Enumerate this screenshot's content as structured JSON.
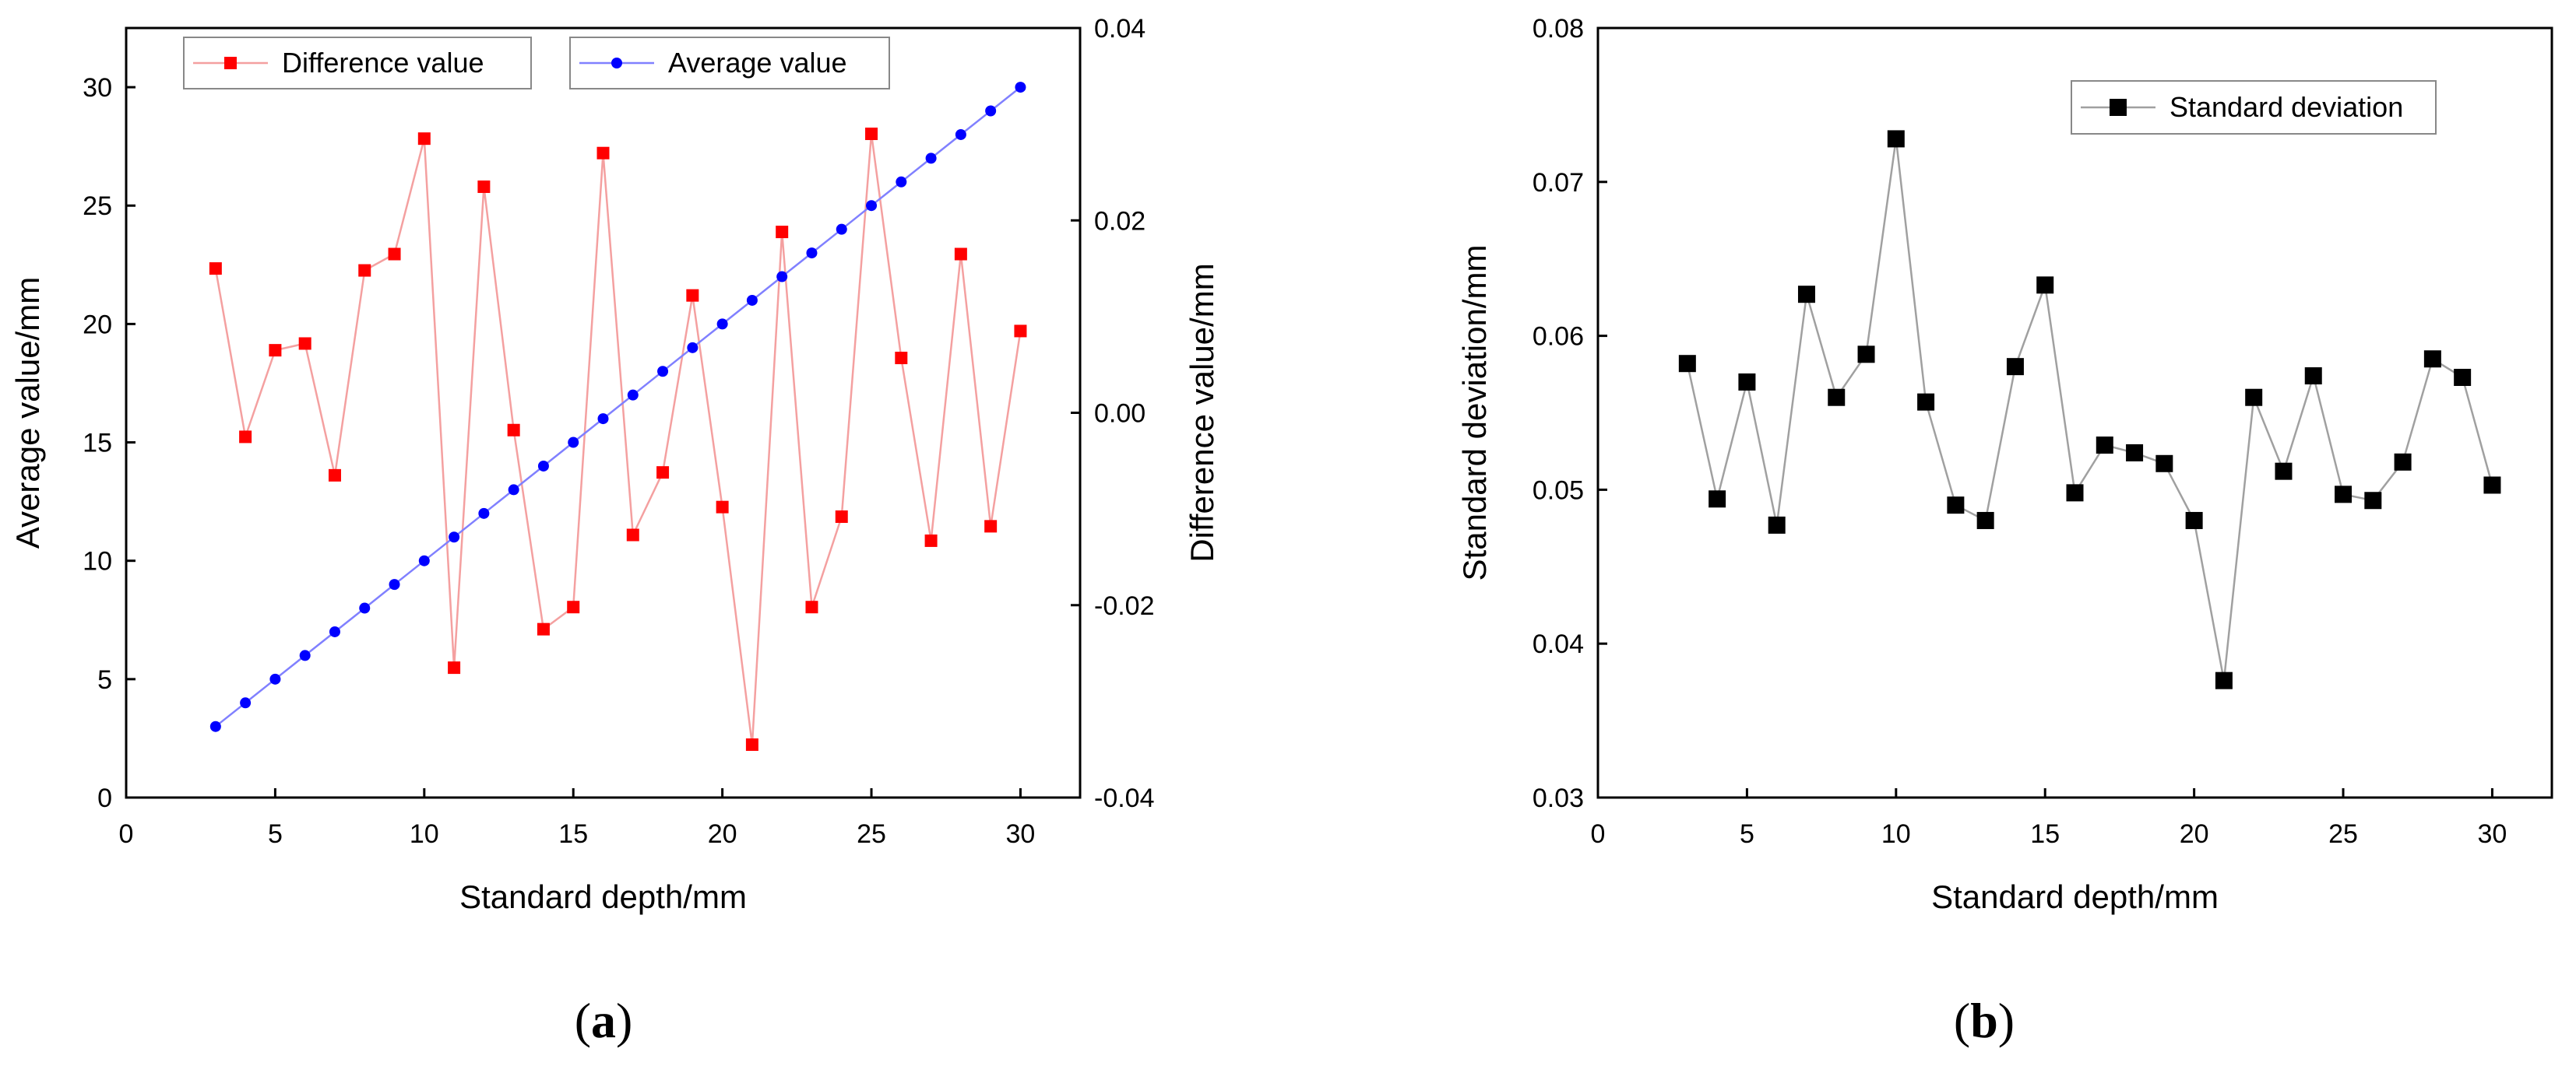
{
  "chart_data": [
    {
      "panel": "a",
      "panel_label": "(a)",
      "label_parts": [
        "(",
        "a",
        ")"
      ],
      "type": "line",
      "xlabel": "Standard depth/mm",
      "ylabel": "Average value/mm",
      "y2label": "Difference value/mm",
      "xlim": [
        0,
        32
      ],
      "ylim": [
        0,
        32.5
      ],
      "y2lim": [
        -0.04,
        0.04
      ],
      "xticks": [
        0,
        5,
        10,
        15,
        20,
        25,
        30
      ],
      "xtick_labels": [
        "0",
        "5",
        "10",
        "15",
        "20",
        "25",
        "30"
      ],
      "yticks": [
        0,
        5,
        10,
        15,
        20,
        25,
        30
      ],
      "ytick_labels": [
        "0",
        "5",
        "10",
        "15",
        "20",
        "25",
        "30"
      ],
      "y2ticks": [
        -0.04,
        -0.02,
        0.0,
        0.02,
        0.04
      ],
      "y2tick_labels": [
        "-0.04",
        "-0.02",
        "0.00",
        "0.02",
        "0.04"
      ],
      "grid": false,
      "legend": "top",
      "series": [
        {
          "name": "Difference value",
          "axis": "right",
          "color": "#ff0000",
          "line_color": "#f4a0a0",
          "marker": "square",
          "x": [
            3,
            4,
            5,
            6,
            7,
            8,
            9,
            10,
            11,
            12,
            13,
            14,
            15,
            16,
            17,
            18,
            19,
            20,
            21,
            22,
            23,
            24,
            25,
            26,
            27,
            28,
            29,
            30
          ],
          "values": [
            0.015,
            -0.0025,
            0.0065,
            0.0072,
            -0.0065,
            0.0148,
            0.0165,
            0.0285,
            -0.0265,
            0.0235,
            -0.0018,
            -0.0225,
            -0.0202,
            0.027,
            -0.0127,
            -0.0062,
            0.0122,
            -0.0098,
            -0.0345,
            0.0188,
            -0.0202,
            -0.0108,
            0.029,
            0.0057,
            -0.0133,
            0.0165,
            -0.0118,
            0.0085
          ]
        },
        {
          "name": "Average value",
          "axis": "left",
          "color": "#0000ff",
          "line_color": "#8080ff",
          "marker": "circle",
          "x": [
            3,
            4,
            5,
            6,
            7,
            8,
            9,
            10,
            11,
            12,
            13,
            14,
            15,
            16,
            17,
            18,
            19,
            20,
            21,
            22,
            23,
            24,
            25,
            26,
            27,
            28,
            29,
            30
          ],
          "values": [
            3,
            4,
            5,
            6,
            7,
            8,
            9,
            10,
            11,
            12,
            13,
            14,
            15,
            16,
            17,
            18,
            19,
            20,
            21,
            22,
            23,
            24,
            25,
            26,
            27,
            28,
            29,
            30
          ]
        }
      ]
    },
    {
      "panel": "b",
      "panel_label": "(b)",
      "label_parts": [
        "(",
        "b",
        ")"
      ],
      "type": "line",
      "xlabel": "Standard depth/mm",
      "ylabel": "Standard deviation/mm",
      "xlim": [
        0,
        32
      ],
      "ylim": [
        0.03,
        0.08
      ],
      "xticks": [
        0,
        5,
        10,
        15,
        20,
        25,
        30
      ],
      "xtick_labels": [
        "0",
        "5",
        "10",
        "15",
        "20",
        "25",
        "30"
      ],
      "yticks": [
        0.03,
        0.04,
        0.05,
        0.06,
        0.07,
        0.08
      ],
      "ytick_labels": [
        "0.03",
        "0.04",
        "0.05",
        "0.06",
        "0.07",
        "0.08"
      ],
      "grid": false,
      "legend": "top-right",
      "series": [
        {
          "name": "Standard deviation",
          "color": "#000000",
          "line_color": "#a0a0a0",
          "marker": "square",
          "x": [
            3,
            4,
            5,
            6,
            7,
            8,
            9,
            10,
            11,
            12,
            13,
            14,
            15,
            16,
            17,
            18,
            19,
            20,
            21,
            22,
            23,
            24,
            25,
            26,
            27,
            28,
            29,
            30
          ],
          "values": [
            0.0582,
            0.0494,
            0.057,
            0.0477,
            0.0627,
            0.056,
            0.0588,
            0.0728,
            0.0557,
            0.049,
            0.048,
            0.058,
            0.0633,
            0.0498,
            0.0529,
            0.0524,
            0.0517,
            0.048,
            0.0376,
            0.056,
            0.0512,
            0.0574,
            0.0497,
            0.0493,
            0.0518,
            0.0585,
            0.0573,
            0.0503
          ]
        }
      ]
    }
  ]
}
